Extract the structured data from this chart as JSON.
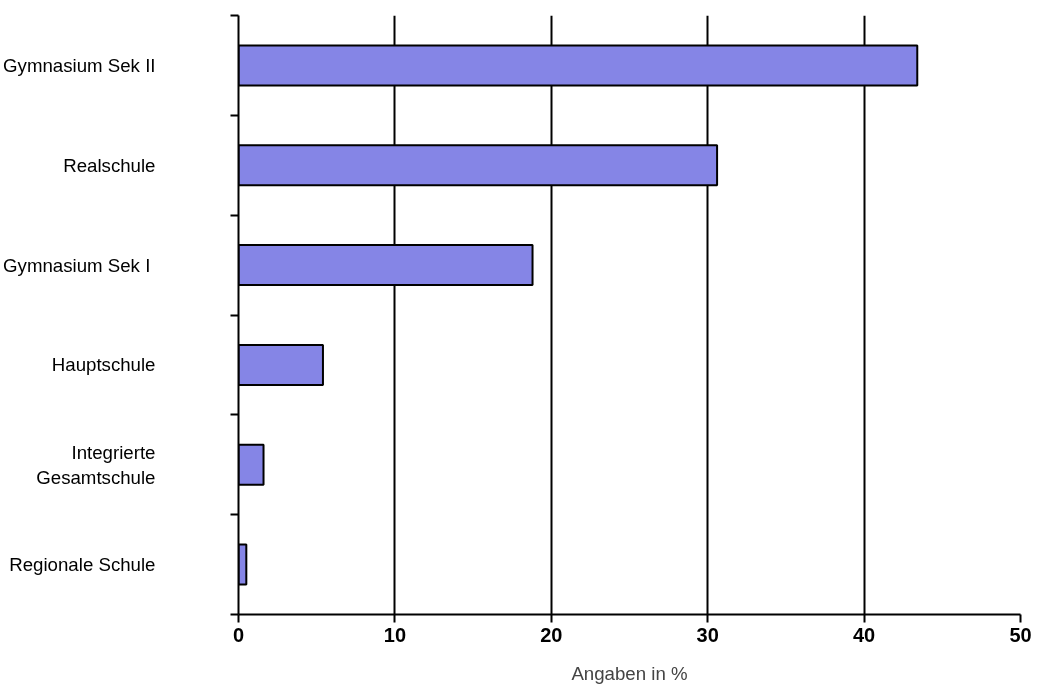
{
  "chart_data": {
    "type": "bar",
    "orientation": "horizontal",
    "categories": [
      "Gymnasium Sek II",
      "Realschule",
      "Gymnasium  Sek I",
      "Hauptschule",
      "Integrierte\nGesamtschule",
      "Regionale Schule"
    ],
    "values": [
      43.4,
      30.6,
      18.8,
      5.4,
      1.6,
      0.5
    ],
    "color": "#8585e6",
    "xlim": [
      0,
      50
    ],
    "xticks": [
      0,
      10,
      20,
      30,
      40,
      50
    ],
    "xlabel": "Angaben in %",
    "grid": "x"
  }
}
